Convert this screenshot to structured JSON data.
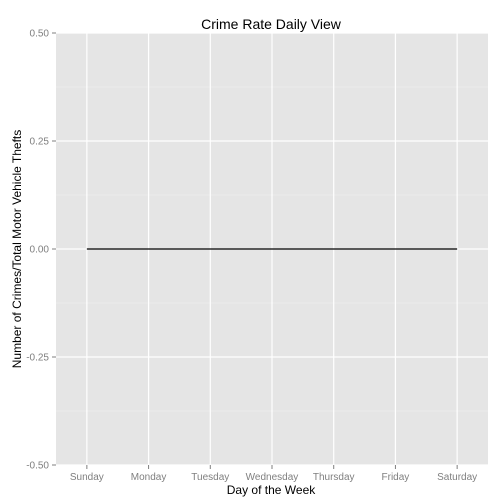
{
  "chart_data": {
    "type": "line",
    "title": "Crime Rate Daily View",
    "xlabel": "Day of the Week",
    "ylabel": "Number of Crimes/Total Motor Vehicle Thefts",
    "categories": [
      "Sunday",
      "Monday",
      "Tuesday",
      "Wednesday",
      "Thursday",
      "Friday",
      "Saturday"
    ],
    "series": [
      {
        "values": [
          0,
          0,
          0,
          0,
          0,
          0,
          0
        ]
      }
    ],
    "ylim": [
      -0.5,
      0.5
    ],
    "yticks": [
      -0.5,
      -0.25,
      0,
      0.25,
      0.5
    ],
    "ytick_labels": [
      "-0.50",
      "-0.25",
      "0.00",
      "0.25",
      "0.50"
    ],
    "grid": true,
    "colors": {
      "panel_background": "#e5e5e5",
      "grid_major": "#ffffff",
      "grid_minor": "#f2f2f2",
      "line": "#000000",
      "tick": "#7f7f7f"
    }
  }
}
